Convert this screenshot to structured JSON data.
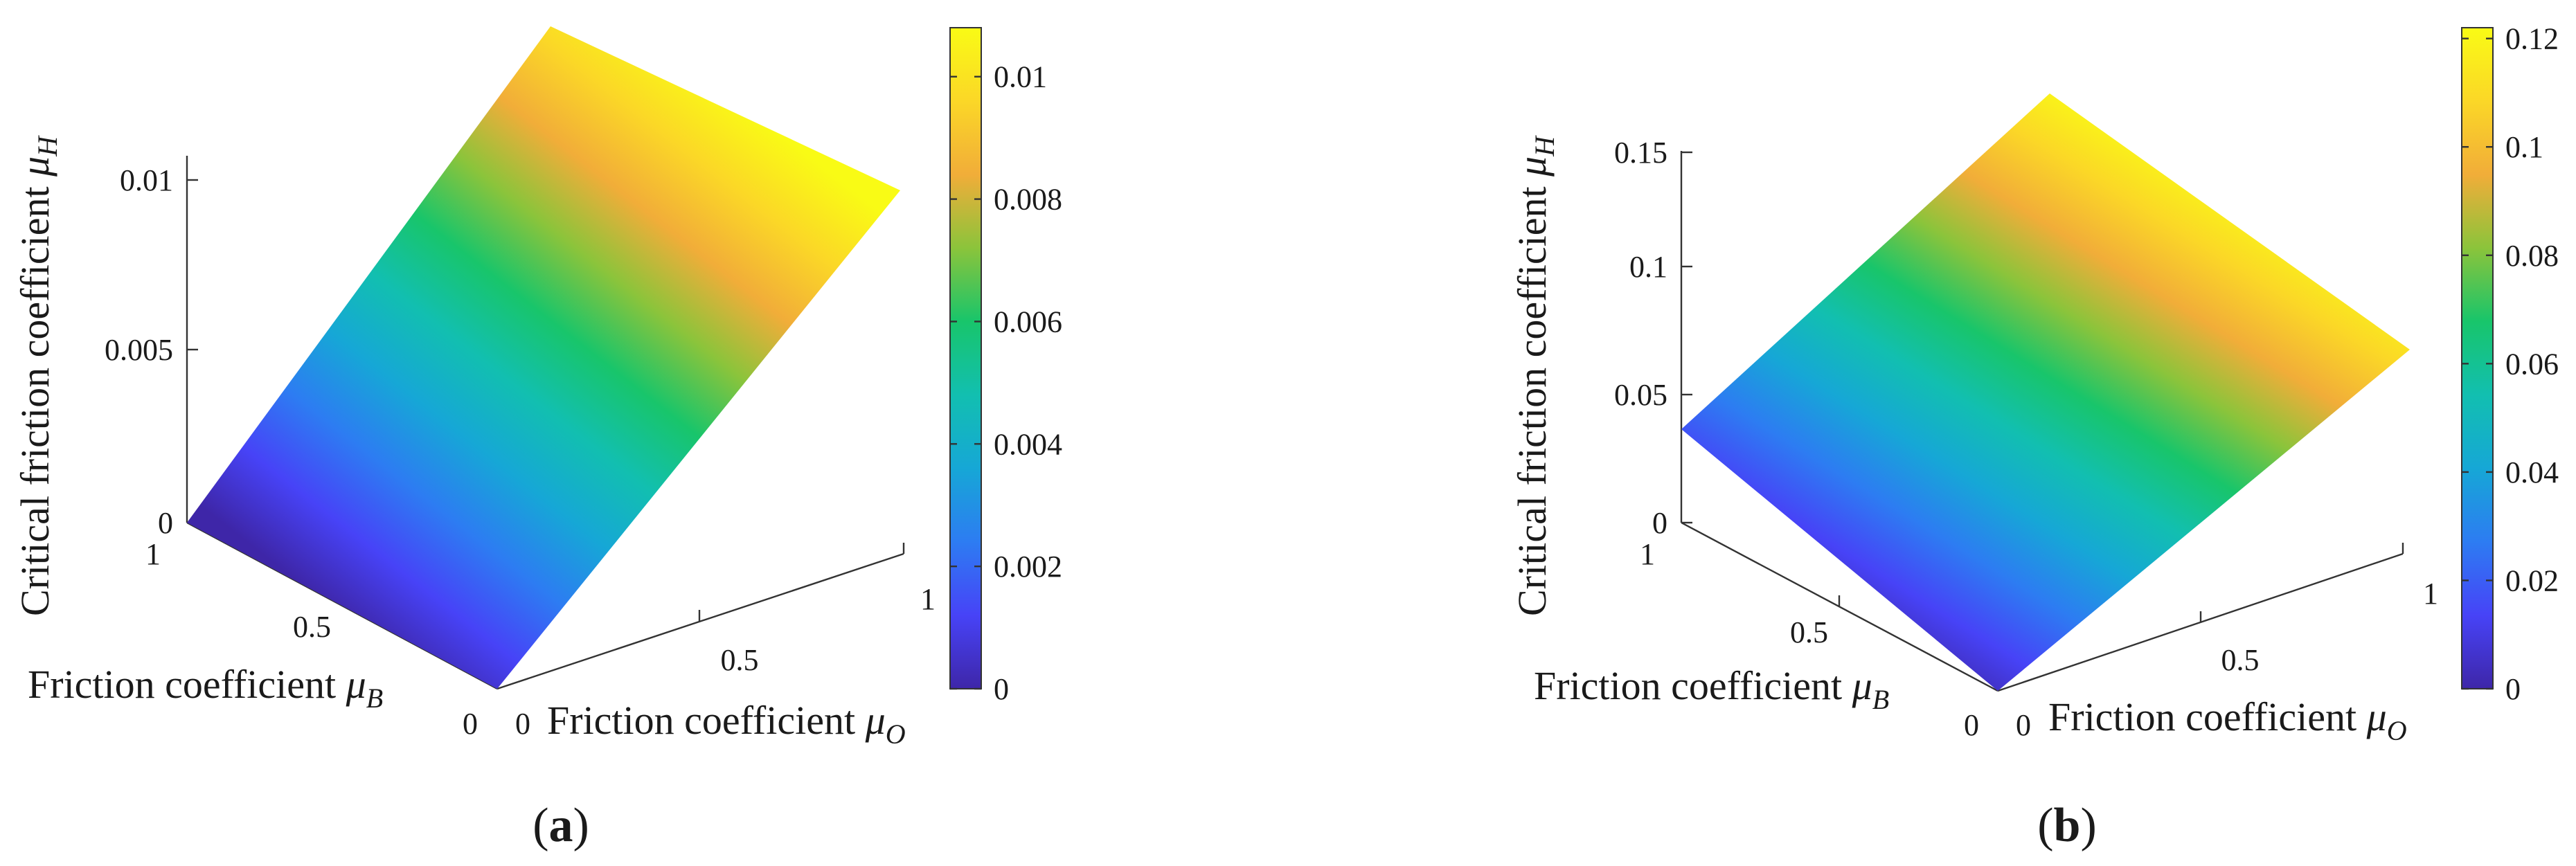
{
  "figure": {
    "panels": [
      {
        "caption_letter": "a",
        "caption_open": "(",
        "caption_close": ")",
        "z_axis": {
          "label": "Critical friction coefficient ",
          "symbol": "μ",
          "subscript": "H"
        },
        "x_axis": {
          "label": "Friction coefficient ",
          "symbol": "μ",
          "subscript": "O"
        },
        "y_axis": {
          "label": "Friction coefficient ",
          "symbol": "μ",
          "subscript": "B"
        },
        "colorbar": {
          "ticks": [
            "0",
            "0.002",
            "0.004",
            "0.006",
            "0.008",
            "0.01"
          ]
        }
      },
      {
        "caption_letter": "b",
        "caption_open": "(",
        "caption_close": ")",
        "z_axis": {
          "label": "Critical friction coefficient ",
          "symbol": "μ",
          "subscript": "H"
        },
        "x_axis": {
          "label": "Friction coefficient ",
          "symbol": "μ",
          "subscript": "O"
        },
        "y_axis": {
          "label": "Friction coefficient ",
          "symbol": "μ",
          "subscript": "B"
        },
        "colorbar": {
          "ticks": [
            "0",
            "0.02",
            "0.04",
            "0.06",
            "0.08",
            "0.1",
            "0.12"
          ]
        }
      }
    ],
    "colormap": [
      "#3e26a8",
      "#4743f7",
      "#2d7cf2",
      "#16a7d6",
      "#12bfb0",
      "#18c56b",
      "#8bc43b",
      "#f1ad39",
      "#fbd727",
      "#f9fb15"
    ]
  },
  "chart_data": [
    {
      "type": "surface",
      "x_label": "Friction coefficient μO",
      "y_label": "Friction coefficient μB",
      "z_label": "Critical friction coefficient μH",
      "x_ticks": [
        "0",
        "0.5",
        "1"
      ],
      "y_ticks": [
        "0",
        "0.5",
        "1"
      ],
      "z_ticks": [
        "0",
        "0.005",
        "0.01"
      ],
      "xlim": [
        0,
        1
      ],
      "ylim": [
        0,
        1
      ],
      "zlim": [
        0,
        0.011
      ],
      "clim": [
        0,
        0.0108
      ],
      "colormap": "parula",
      "grid": false,
      "surface": {
        "x": [
          0,
          1
        ],
        "y": [
          0,
          1
        ],
        "z": [
          [
            0,
            0.0108
          ],
          [
            0,
            0.0108
          ]
        ]
      }
    },
    {
      "type": "surface",
      "x_label": "Friction coefficient μO",
      "y_label": "Friction coefficient μB",
      "z_label": "Critical friction coefficient μH",
      "x_ticks": [
        "0",
        "0.5",
        "1"
      ],
      "y_ticks": [
        "0",
        "0.5",
        "1"
      ],
      "z_ticks": [
        "0",
        "0.05",
        "0.1",
        "0.15"
      ],
      "xlim": [
        0,
        1
      ],
      "ylim": [
        0,
        1
      ],
      "zlim": [
        0,
        0.16
      ],
      "clim": [
        0,
        0.122
      ],
      "colormap": "parula",
      "grid": false,
      "surface": {
        "x": [
          0,
          1
        ],
        "y": [
          0,
          1
        ],
        "z": [
          [
            0,
            0.085
          ],
          [
            0.035,
            0.122
          ]
        ]
      }
    }
  ]
}
